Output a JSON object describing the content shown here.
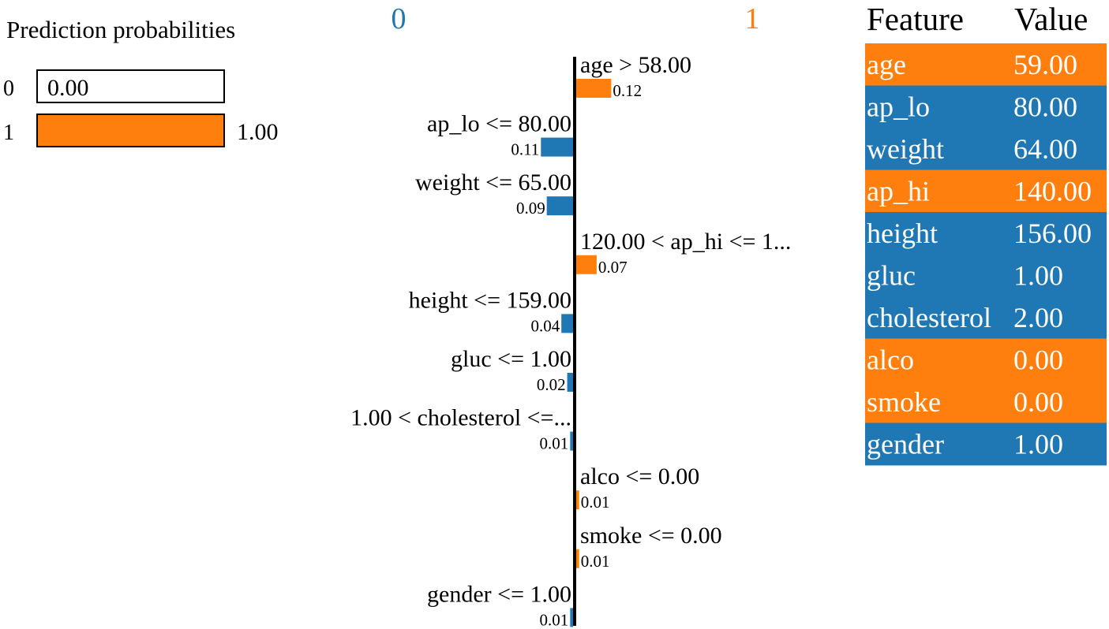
{
  "colors": {
    "class0": "#1f77b4",
    "class1": "#ff7f0e"
  },
  "prediction": {
    "title": "Prediction probabilities",
    "rows": [
      {
        "label": "0",
        "value": 0.0,
        "text": "0.00"
      },
      {
        "label": "1",
        "value": 1.0,
        "text": "1.00"
      }
    ]
  },
  "chart_data": {
    "type": "bar",
    "orientation": "horizontal",
    "class_labels": [
      "0",
      "1"
    ],
    "categories": [
      "age > 58.00",
      "ap_lo <= 80.00",
      "weight <= 65.00",
      "120.00 < ap_hi <= 1...",
      "height <= 159.00",
      "gluc <= 1.00",
      "1.00 < cholesterol <=...",
      "alco <= 0.00",
      "smoke <= 0.00",
      "gender <= 1.00"
    ],
    "values": [
      0.12,
      -0.11,
      -0.09,
      0.07,
      -0.04,
      -0.02,
      -0.01,
      0.01,
      0.01,
      -0.01
    ],
    "value_labels": [
      "0.12",
      "0.11",
      "0.09",
      "0.07",
      "0.04",
      "0.02",
      "0.01",
      "0.01",
      "0.01",
      "0.01"
    ]
  },
  "table": {
    "headers": [
      "Feature",
      "Value"
    ],
    "rows": [
      {
        "feature": "age",
        "value": "59.00",
        "class": 1
      },
      {
        "feature": "ap_lo",
        "value": "80.00",
        "class": 0
      },
      {
        "feature": "weight",
        "value": "64.00",
        "class": 0
      },
      {
        "feature": "ap_hi",
        "value": "140.00",
        "class": 1
      },
      {
        "feature": "height",
        "value": "156.00",
        "class": 0
      },
      {
        "feature": "gluc",
        "value": "1.00",
        "class": 0
      },
      {
        "feature": "cholesterol",
        "value": "2.00",
        "class": 0
      },
      {
        "feature": "alco",
        "value": "0.00",
        "class": 1
      },
      {
        "feature": "smoke",
        "value": "0.00",
        "class": 1
      },
      {
        "feature": "gender",
        "value": "1.00",
        "class": 0
      }
    ]
  }
}
